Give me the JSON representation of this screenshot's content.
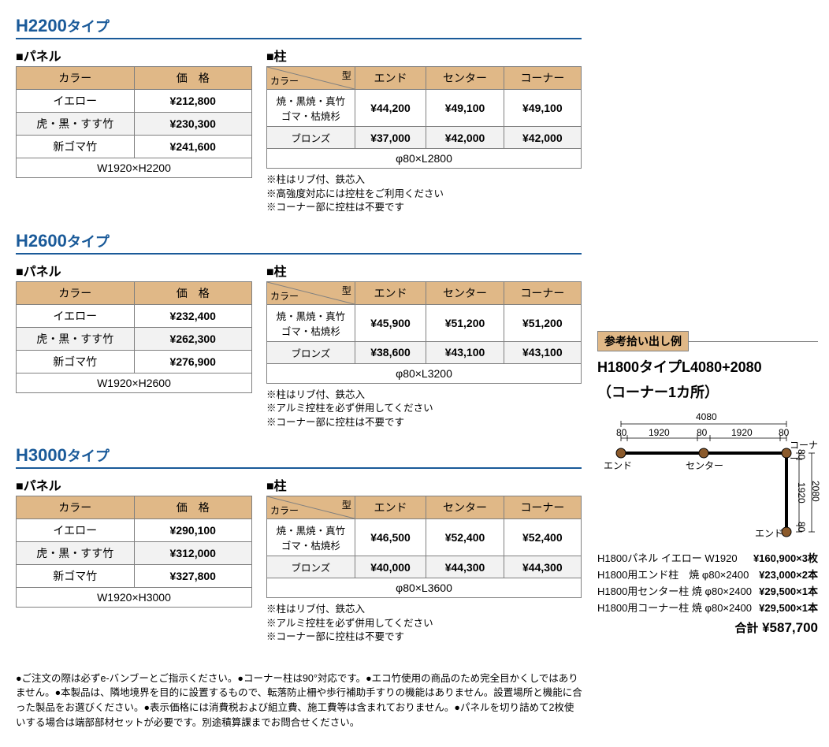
{
  "colors": {
    "header_bg": "#e0b887",
    "title_color": "#1a5a99",
    "border": "#808080",
    "shade": "#f2f2f2",
    "post_fill": "#8b5a2b"
  },
  "sections": [
    {
      "title_main": "H2200",
      "title_suffix": "タイプ",
      "panel": {
        "header": "パネル",
        "col1": "カラー",
        "col2": "価　格",
        "rows": [
          {
            "color": "イエロー",
            "price": "¥212,800",
            "shade": false
          },
          {
            "color": "虎・黒・すす竹",
            "price": "¥230,300",
            "shade": true
          },
          {
            "color": "新ゴマ竹",
            "price": "¥241,600",
            "shade": false
          }
        ],
        "footer": "W1920×H2200"
      },
      "post": {
        "header": "柱",
        "diag_a": "カラー",
        "diag_b": "型",
        "cols": [
          "エンド",
          "センター",
          "コーナー"
        ],
        "rows": [
          {
            "label": "焼・黒焼・真竹\nゴマ・枯焼杉",
            "cells": [
              "¥44,200",
              "¥49,100",
              "¥49,100"
            ],
            "shade": false
          },
          {
            "label": "ブロンズ",
            "cells": [
              "¥37,000",
              "¥42,000",
              "¥42,000"
            ],
            "shade": true
          }
        ],
        "footer": "φ80×L2800",
        "notes": [
          "※柱はリブ付、鉄芯入",
          "※高強度対応には控柱をご利用ください",
          "※コーナー部に控柱は不要です"
        ]
      }
    },
    {
      "title_main": "H2600",
      "title_suffix": "タイプ",
      "panel": {
        "header": "パネル",
        "col1": "カラー",
        "col2": "価　格",
        "rows": [
          {
            "color": "イエロー",
            "price": "¥232,400",
            "shade": false
          },
          {
            "color": "虎・黒・すす竹",
            "price": "¥262,300",
            "shade": true
          },
          {
            "color": "新ゴマ竹",
            "price": "¥276,900",
            "shade": false
          }
        ],
        "footer": "W1920×H2600"
      },
      "post": {
        "header": "柱",
        "diag_a": "カラー",
        "diag_b": "型",
        "cols": [
          "エンド",
          "センター",
          "コーナー"
        ],
        "rows": [
          {
            "label": "焼・黒焼・真竹\nゴマ・枯焼杉",
            "cells": [
              "¥45,900",
              "¥51,200",
              "¥51,200"
            ],
            "shade": false
          },
          {
            "label": "ブロンズ",
            "cells": [
              "¥38,600",
              "¥43,100",
              "¥43,100"
            ],
            "shade": true
          }
        ],
        "footer": "φ80×L3200",
        "notes": [
          "※柱はリブ付、鉄芯入",
          "※アルミ控柱を必ず併用してください",
          "※コーナー部に控柱は不要です"
        ]
      }
    },
    {
      "title_main": "H3000",
      "title_suffix": "タイプ",
      "panel": {
        "header": "パネル",
        "col1": "カラー",
        "col2": "価　格",
        "rows": [
          {
            "color": "イエロー",
            "price": "¥290,100",
            "shade": false
          },
          {
            "color": "虎・黒・すす竹",
            "price": "¥312,000",
            "shade": true
          },
          {
            "color": "新ゴマ竹",
            "price": "¥327,800",
            "shade": false
          }
        ],
        "footer": "W1920×H3000"
      },
      "post": {
        "header": "柱",
        "diag_a": "カラー",
        "diag_b": "型",
        "cols": [
          "エンド",
          "センター",
          "コーナー"
        ],
        "rows": [
          {
            "label": "焼・黒焼・真竹\nゴマ・枯焼杉",
            "cells": [
              "¥46,500",
              "¥52,400",
              "¥52,400"
            ],
            "shade": false
          },
          {
            "label": "ブロンズ",
            "cells": [
              "¥40,000",
              "¥44,300",
              "¥44,300"
            ],
            "shade": true
          }
        ],
        "footer": "φ80×L3600",
        "notes": [
          "※柱はリブ付、鉄芯入",
          "※アルミ控柱を必ず併用してください",
          "※コーナー部に控柱は不要です"
        ]
      }
    }
  ],
  "example": {
    "title": "参考拾い出し例",
    "line1": "H1800タイプL4080+2080",
    "line2": "（コーナー1カ所）",
    "diagram": {
      "top_total": "4080",
      "top_segs": [
        "80",
        "1920",
        "80",
        "1920",
        "80"
      ],
      "right_total": "2080",
      "right_segs": [
        "80",
        "1920",
        "80"
      ],
      "labels": {
        "corner": "コーナー",
        "end": "エンド",
        "center": "センター"
      }
    },
    "items": [
      {
        "desc": "H1800パネル イエロー W1920",
        "amt": "¥160,900×3枚"
      },
      {
        "desc": "H1800用エンド柱　焼 φ80×2400",
        "amt": "¥23,000×2本"
      },
      {
        "desc": "H1800用センター柱 焼 φ80×2400",
        "amt": "¥29,500×1本"
      },
      {
        "desc": "H1800用コーナー柱 焼 φ80×2400",
        "amt": "¥29,500×1本"
      }
    ],
    "total_label": "合計",
    "total_amount": "¥587,700"
  },
  "footer_notes": "●ご注文の際は必ずe-バンブーとご指示ください。●コーナー柱は90°対応です。●エコ竹使用の商品のため完全目かくしではありません。●本製品は、隣地境界を目的に設置するもので、転落防止柵や歩行補助手すりの機能はありません。設置場所と機能に合った製品をお選びください。●表示価格には消費税および組立費、施工費等は含まれておりません。●パネルを切り詰めて2枚使いする場合は端部部材セットが必要です。別途積算課までお問合せください。"
}
